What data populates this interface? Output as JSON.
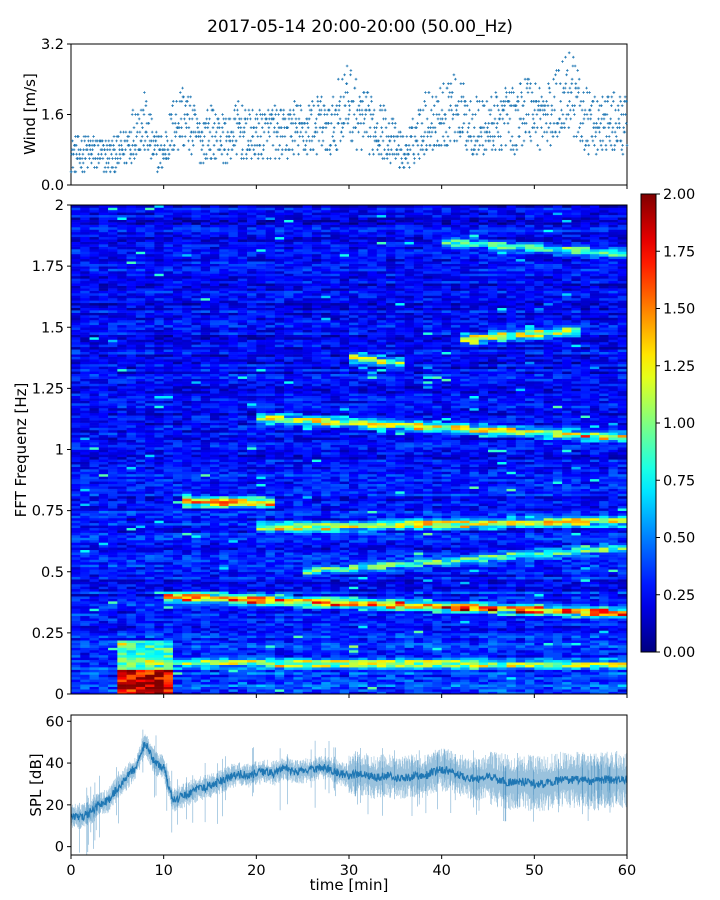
{
  "figure": {
    "title": "2017-05-14 20:00-20:00 (50.00_Hz)"
  },
  "chart_data": [
    {
      "type": "scatter",
      "panel": "wind",
      "title": "",
      "xlabel": "",
      "ylabel": "Wind [m/s]",
      "xlim": [
        0,
        60
      ],
      "ylim": [
        0,
        3.2
      ],
      "yticks": [
        "0.0",
        "1.6",
        "3.2"
      ],
      "marker_color": "#1f77b4",
      "marker": "plus",
      "series": [
        {
          "x": [
            0,
            1,
            2,
            3,
            4,
            5,
            6,
            7,
            8,
            9,
            10,
            11,
            12,
            13,
            14,
            15,
            16,
            17,
            18,
            19,
            20,
            21,
            22,
            23,
            24,
            25,
            26,
            27,
            28,
            29,
            30,
            31,
            32,
            33,
            34,
            35,
            36,
            37,
            38,
            39,
            40,
            41,
            42,
            43,
            44,
            45,
            46,
            47,
            48,
            49,
            50,
            51,
            52,
            53,
            54,
            55,
            56,
            57,
            58,
            59,
            60
          ],
          "y": [
            0.7,
            0.7,
            0.75,
            0.7,
            0.65,
            0.7,
            0.9,
            1.3,
            1.4,
            0.8,
            0.7,
            1.3,
            1.6,
            1.3,
            1.0,
            1.2,
            1.1,
            1.0,
            1.3,
            1.1,
            1.1,
            1.2,
            1.2,
            1.1,
            1.3,
            1.2,
            1.3,
            1.4,
            1.2,
            1.7,
            1.9,
            1.5,
            1.4,
            1.3,
            1.2,
            0.9,
            0.7,
            1.0,
            1.4,
            1.5,
            1.5,
            1.8,
            1.6,
            1.4,
            1.3,
            1.3,
            1.4,
            1.6,
            1.4,
            1.8,
            1.7,
            1.5,
            1.6,
            2.1,
            2.2,
            1.6,
            1.4,
            1.3,
            1.4,
            1.4,
            1.3
          ]
        }
      ]
    },
    {
      "type": "heatmap",
      "panel": "spectrogram",
      "title": "",
      "xlabel": "",
      "ylabel": "FFT Frequenz [Hz]",
      "xlim": [
        0,
        60
      ],
      "ylim": [
        0,
        2
      ],
      "yticks": [
        "0",
        "0.25",
        "0.5",
        "0.75",
        "1",
        "1.25",
        "1.5",
        "1.75",
        "2"
      ],
      "colormap": "jet",
      "value_range": [
        0,
        2.0
      ],
      "colorbar_ticks": [
        "0.00",
        "0.25",
        "0.50",
        "0.75",
        "1.00",
        "1.25",
        "1.50",
        "1.75",
        "2.00"
      ],
      "background_level": 0.25,
      "features": [
        {
          "kind": "low-freq-burst",
          "t": [
            5,
            11
          ],
          "f": [
            0,
            0.1
          ],
          "value": 2.0
        },
        {
          "kind": "line",
          "t": [
            5,
            60
          ],
          "f": [
            0.13,
            0.12
          ],
          "value": 1.2
        },
        {
          "kind": "line",
          "t": [
            10,
            60
          ],
          "f": [
            0.4,
            0.33
          ],
          "value": 1.6
        },
        {
          "kind": "line",
          "t": [
            12,
            22
          ],
          "f": [
            0.79,
            0.78
          ],
          "value": 1.6
        },
        {
          "kind": "line",
          "t": [
            20,
            60
          ],
          "f": [
            0.68,
            0.71
          ],
          "value": 1.3
        },
        {
          "kind": "line",
          "t": [
            25,
            60
          ],
          "f": [
            0.5,
            0.6
          ],
          "value": 1.0
        },
        {
          "kind": "line",
          "t": [
            20,
            60
          ],
          "f": [
            1.13,
            1.05
          ],
          "value": 1.3
        },
        {
          "kind": "line",
          "t": [
            30,
            36
          ],
          "f": [
            1.38,
            1.35
          ],
          "value": 1.2
        },
        {
          "kind": "line",
          "t": [
            42,
            55
          ],
          "f": [
            1.45,
            1.49
          ],
          "value": 1.2
        },
        {
          "kind": "line",
          "t": [
            40,
            60
          ],
          "f": [
            1.85,
            1.8
          ],
          "value": 0.9
        }
      ]
    },
    {
      "type": "line",
      "panel": "spl",
      "title": "",
      "xlabel": "time [min]",
      "ylabel": "SPL [dB]",
      "xlim": [
        0,
        60
      ],
      "ylim": [
        -4,
        63
      ],
      "xticks": [
        "0",
        "10",
        "20",
        "30",
        "40",
        "50",
        "60"
      ],
      "yticks": [
        "0",
        "20",
        "40",
        "60"
      ],
      "line_color": "#1f77b4",
      "series": [
        {
          "x": [
            0,
            1,
            2,
            3,
            4,
            5,
            6,
            7,
            8,
            9,
            10,
            11,
            12,
            13,
            14,
            15,
            16,
            17,
            18,
            19,
            20,
            21,
            22,
            23,
            24,
            25,
            26,
            27,
            28,
            29,
            30,
            31,
            32,
            33,
            34,
            35,
            36,
            37,
            38,
            39,
            40,
            41,
            42,
            43,
            44,
            45,
            46,
            47,
            48,
            49,
            50,
            51,
            52,
            53,
            54,
            55,
            56,
            57,
            58,
            59,
            60
          ],
          "y": [
            15,
            14,
            16,
            20,
            22,
            28,
            33,
            38,
            50,
            40,
            38,
            22,
            24,
            26,
            28,
            29,
            31,
            33,
            35,
            34,
            35,
            36,
            35,
            38,
            36,
            36,
            37,
            38,
            37,
            35,
            34,
            35,
            34,
            33,
            34,
            33,
            33,
            34,
            33,
            36,
            37,
            36,
            34,
            33,
            32,
            34,
            32,
            31,
            31,
            31,
            30,
            30,
            31,
            32,
            32,
            32,
            31,
            32,
            32,
            32,
            32
          ]
        }
      ]
    }
  ]
}
